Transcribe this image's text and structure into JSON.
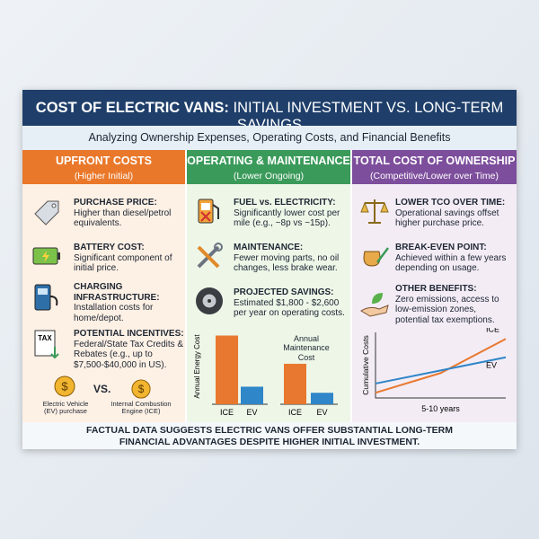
{
  "header": {
    "title_bold": "COST OF ELECTRIC VANS:",
    "title_rest": "INITIAL INVESTMENT VS. LONG-TERM SAVINGS",
    "subtitle": "Analyzing Ownership Expenses, Operating Costs, and Financial Benefits"
  },
  "columns": [
    {
      "title": "UPFRONT COSTS",
      "subtitle": "(Higher Initial)",
      "items": [
        {
          "label": "PURCHASE PRICE:",
          "text": "Higher than diesel/petrol equivalents."
        },
        {
          "label": "BATTERY COST:",
          "text": "Significant component of initial price."
        },
        {
          "label": "CHARGING INFRASTRUCTURE:",
          "text": "Installation costs for home/depot."
        },
        {
          "label": "POTENTIAL INCENTIVES:",
          "text": "Federal/State Tax Credits & Rebates (e.g., up to $7,500-$40,000 in US)."
        }
      ],
      "tax_icon_label": "TAX",
      "coin_symbol": "$",
      "comparison": {
        "left": "Electric Vehicle (EV) purchase",
        "vs": "VS.",
        "right": "Internal Combustion Engine (ICE)"
      }
    },
    {
      "title": "OPERATING & MAINTENANCE",
      "subtitle": "(Lower Ongoing)",
      "items": [
        {
          "label": "FUEL vs. ELECTRICITY:",
          "text": "Significantly lower cost per mile (e.g., ~8p vs ~15p)."
        },
        {
          "label": "MAINTENANCE:",
          "text": "Fewer moving parts, no oil changes, less brake wear."
        },
        {
          "label": "PROJECTED SAVINGS:",
          "text": "Estimated $1,800 - $2,600 per year on operating costs."
        }
      ],
      "charts": [
        {
          "type": "bar",
          "y_label": "Annual Energy Cost",
          "categories": [
            "ICE",
            "EV"
          ],
          "values": [
            90,
            23
          ],
          "colors": [
            "#e8782f",
            "#2f86c8"
          ],
          "ylim": [
            0,
            100
          ]
        },
        {
          "type": "bar",
          "title": "Annual Maintenance Cost",
          "categories": [
            "ICE",
            "EV"
          ],
          "values": [
            53,
            15
          ],
          "colors": [
            "#e8782f",
            "#2f86c8"
          ],
          "ylim": [
            0,
            100
          ]
        }
      ]
    },
    {
      "title": "TOTAL COST OF OWNERSHIP",
      "subtitle": "(Competitive/Lower over Time)",
      "items": [
        {
          "label": "LOWER TCO OVER TIME:",
          "text": "Operational savings offset higher purchase price."
        },
        {
          "label": "BREAK-EVEN POINT:",
          "text": "Achieved within a few years depending on usage."
        },
        {
          "label": "OTHER BENEFITS:",
          "text": "Zero emissions, access to low-emission zones, potential tax exemptions."
        }
      ],
      "chart": {
        "type": "line",
        "y_label": "Cumulative Costs",
        "x_label": "5-10 years",
        "x": [
          0,
          5,
          10
        ],
        "xlim": [
          0,
          10
        ],
        "ylim": [
          0,
          100
        ],
        "series": [
          {
            "name": "ICE",
            "color": "#e8782f",
            "values": [
              8,
              38,
              90
            ]
          },
          {
            "name": "EV",
            "color": "#2f86c8",
            "values": [
              22,
              42,
              62
            ]
          }
        ]
      }
    }
  ],
  "footer": "FACTUAL DATA SUGGESTS ELECTRIC VANS OFFER SUBSTANTIAL LONG-TERM FINANCIAL ADVANTAGES DESPITE HIGHER INITIAL INVESTMENT."
}
